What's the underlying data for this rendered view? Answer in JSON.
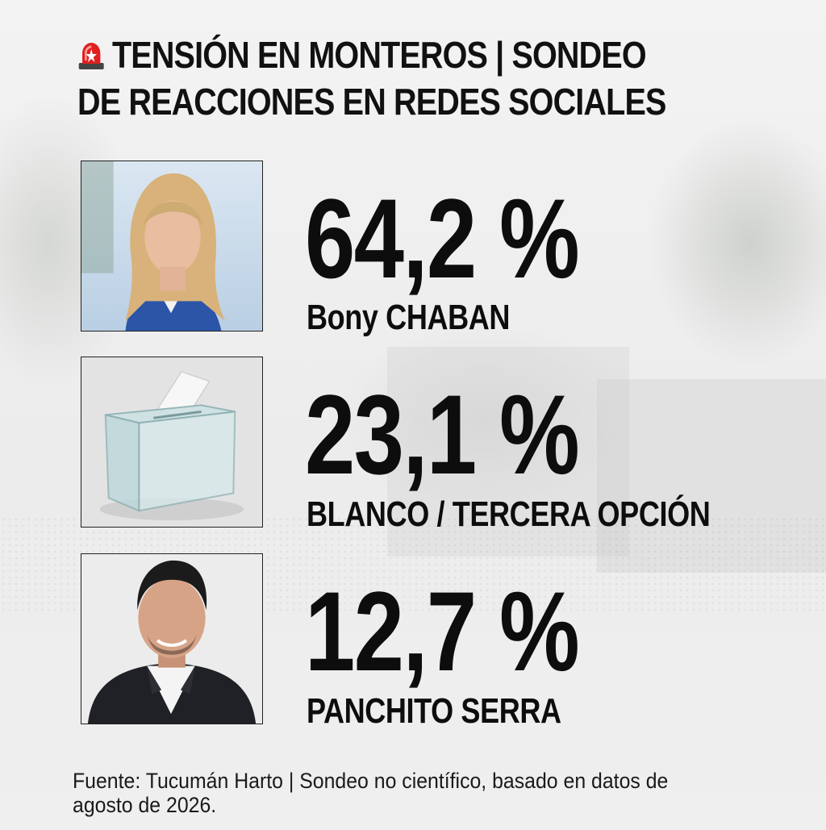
{
  "header": {
    "title_line1": "TENSIÓN EN MONTEROS | SONDEO",
    "title_line2": "DE REACCIONES EN REDES SOCIALES",
    "icon": "siren-emoji"
  },
  "results": [
    {
      "percent": "64,2 %",
      "label": "Bony CHABAN",
      "image": "woman-portrait",
      "value": 64.2
    },
    {
      "percent": "23,1 %",
      "label": "BLANCO / TERCERA OPCIÓN",
      "image": "ballot-box",
      "value": 23.1
    },
    {
      "percent": "12,7 %",
      "label": "PANCHITO SERRA",
      "image": "man-portrait",
      "value": 12.7
    }
  ],
  "footer": {
    "source_line1": "Fuente: Tucumán Harto | Sondeo no científico, basado en datos de",
    "source_line2": "agosto de 2026."
  },
  "colors": {
    "text": "#0d0d0d",
    "siren_red": "#e02020",
    "background": "#eeeeee"
  }
}
